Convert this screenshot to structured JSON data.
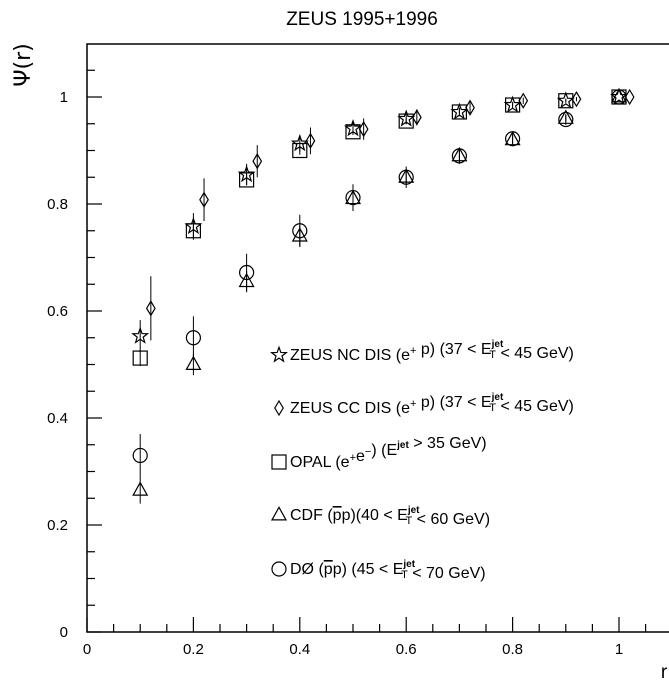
{
  "chart_data": {
    "type": "scatter",
    "title": "ZEUS 1995+1996",
    "xlabel": "r",
    "ylabel": "Ψ(r)",
    "xlim": [
      0,
      1.1
    ],
    "ylim": [
      0,
      1.1
    ],
    "xticks": [
      0,
      0.2,
      0.4,
      0.6,
      0.8,
      1
    ],
    "xtick_labels": [
      "0",
      "0.2",
      "0.4",
      "0.6",
      "0.8",
      "1"
    ],
    "yticks": [
      0,
      0.2,
      0.4,
      0.6,
      0.8,
      1
    ],
    "ytick_labels": [
      "0",
      "0.2",
      "0.4",
      "0.6",
      "0.8",
      "1"
    ],
    "grid": false,
    "legend_position": "center-right",
    "series": [
      {
        "name": "ZEUS NC DIS (e⁺ p) (37 < E_T^jet < 45 GeV)",
        "legend": {
          "prefix": "ZEUS NC DIS (e",
          "sup1": "+",
          "mid": " p) (37 < E",
          "sub": "T",
          "sup2": "jet",
          "suffix": " < 45 GeV)"
        },
        "marker": "star",
        "x": [
          0.1,
          0.2,
          0.3,
          0.4,
          0.5,
          0.6,
          0.7,
          0.8,
          0.9,
          1.0
        ],
        "y": [
          0.553,
          0.758,
          0.855,
          0.913,
          0.941,
          0.959,
          0.972,
          0.985,
          0.993,
          1.0
        ],
        "err": [
          0.03,
          0.025,
          0.02,
          0.015,
          0.012,
          0.01,
          0.008,
          0.006,
          0.004,
          0.0
        ]
      },
      {
        "name": "ZEUS CC DIS (e⁺ p) (37 < E_T^jet < 45 GeV)",
        "legend": {
          "prefix": "ZEUS CC DIS (e",
          "sup1": "+",
          "mid": " p) (37 < E",
          "sub": "T",
          "sup2": "jet",
          "suffix": " < 45 GeV)"
        },
        "marker": "diamond",
        "x": [
          0.12,
          0.22,
          0.32,
          0.42,
          0.52,
          0.62,
          0.72,
          0.82,
          0.92,
          1.02
        ],
        "y": [
          0.605,
          0.808,
          0.88,
          0.918,
          0.94,
          0.962,
          0.98,
          0.993,
          0.996,
          1.0
        ],
        "err": [
          0.06,
          0.04,
          0.03,
          0.025,
          0.02,
          0.015,
          0.01,
          0.006,
          0.004,
          0.0
        ]
      },
      {
        "name": "OPAL (e⁺e⁻) (E^jet > 35 GeV)",
        "legend": {
          "prefix": "OPAL (e",
          "sup1": "+",
          "mid": "e",
          "sup3": "−",
          "mid2": ") (E",
          "sup2": "jet",
          "suffix": " > 35 GeV)"
        },
        "marker": "square",
        "x": [
          0.1,
          0.2,
          0.3,
          0.4,
          0.5,
          0.6,
          0.7,
          0.8,
          0.9,
          1.0
        ],
        "y": [
          0.512,
          0.75,
          0.845,
          0.9,
          0.935,
          0.955,
          0.972,
          0.985,
          0.993,
          1.0
        ],
        "err": [
          0.015,
          0.012,
          0.01,
          0.008,
          0.006,
          0.005,
          0.004,
          0.003,
          0.002,
          0.0
        ]
      },
      {
        "name": "CDF (p̄p)(40 < E_T^jet < 60 GeV)",
        "legend": {
          "prefix": "CDF (",
          "pbar": "p",
          "mid": "p)(40 < E",
          "sub": "T",
          "sup2": "jet",
          "suffix": " < 60 GeV)"
        },
        "marker": "triangle",
        "x": [
          0.1,
          0.2,
          0.3,
          0.4,
          0.5,
          0.6,
          0.7,
          0.8,
          0.9,
          1.0
        ],
        "y": [
          0.265,
          0.5,
          0.655,
          0.74,
          0.81,
          0.85,
          0.89,
          0.92,
          0.96,
          1.0
        ],
        "err": [
          0.025,
          0.02,
          0.02,
          0.02,
          0.015,
          0.012,
          0.01,
          0.008,
          0.006,
          0.0
        ]
      },
      {
        "name": "DØ (p̄p) (45 < E_T^jet < 70 GeV)",
        "legend": {
          "prefix": "DØ (",
          "pbar": "p",
          "mid": "p) (45 < E",
          "sub": "T",
          "sup2": "jet",
          "suffix": " < 70 GeV)"
        },
        "marker": "circle",
        "x": [
          0.1,
          0.2,
          0.3,
          0.4,
          0.5,
          0.6,
          0.7,
          0.8,
          0.9,
          1.0
        ],
        "y": [
          0.33,
          0.55,
          0.672,
          0.75,
          0.812,
          0.85,
          0.89,
          0.922,
          0.958,
          1.0
        ],
        "err": [
          0.04,
          0.04,
          0.035,
          0.03,
          0.025,
          0.02,
          0.015,
          0.012,
          0.01,
          0.0
        ]
      }
    ]
  }
}
